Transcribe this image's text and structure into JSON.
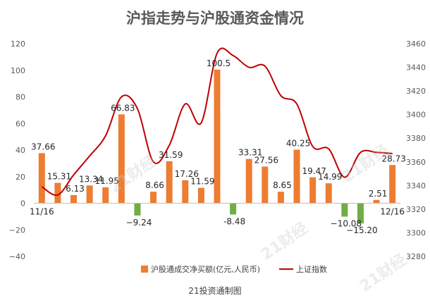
{
  "chart_data": {
    "type": "bar",
    "title": "沪指走势与沪股通资金情况",
    "source": "21投资通制图",
    "watermarks": [
      "21财经",
      "21财经",
      "21财经",
      "21财经"
    ],
    "colors": {
      "bar_positive": "#ED7D31",
      "bar_negative": "#70AD47",
      "line": "#C00000"
    },
    "y_left": {
      "min": -40,
      "max": 120,
      "ticks": [
        "-40",
        "-20",
        "0",
        "20",
        "40",
        "60",
        "80",
        "100",
        "120"
      ]
    },
    "y_right": {
      "min": 3280,
      "max": 3460,
      "ticks": [
        "3280",
        "3300",
        "3320",
        "3340",
        "3360",
        "3380",
        "3400",
        "3420",
        "3440",
        "3460"
      ]
    },
    "x_labels": {
      "start": "11/16",
      "end": "12/16"
    },
    "series": [
      {
        "name": "沪股通成交净买额(亿元,人民币)",
        "type": "bar",
        "values": [
          37.66,
          15.31,
          6.13,
          13.34,
          11.95,
          66.83,
          -9.24,
          8.66,
          31.59,
          17.26,
          11.59,
          100.5,
          -8.48,
          33.31,
          27.56,
          8.65,
          40.25,
          19.47,
          14.99,
          -10.08,
          -15.2,
          2.51,
          28.73
        ],
        "labels": [
          "37.66",
          "15.31",
          "6.13",
          "13.34",
          "11.95",
          "66.83",
          "−9.24",
          "8.66",
          "31.59",
          "17.26",
          "11.59",
          "100.5",
          "-8.48",
          "33.31",
          "27.56",
          "8.65",
          "40.25",
          "19.47",
          "14.99",
          "−10.08",
          "−15.20",
          "2.51",
          "28.73"
        ]
      },
      {
        "name": "上证指数",
        "type": "line",
        "axis": "right",
        "values": [
          3339,
          3332,
          3349,
          3365,
          3382,
          3415,
          3405,
          3360,
          3374,
          3409,
          3393,
          3452,
          3450,
          3440,
          3441,
          3416,
          3409,
          3373,
          3371,
          3347,
          3368,
          3368,
          3367
        ]
      }
    ]
  }
}
